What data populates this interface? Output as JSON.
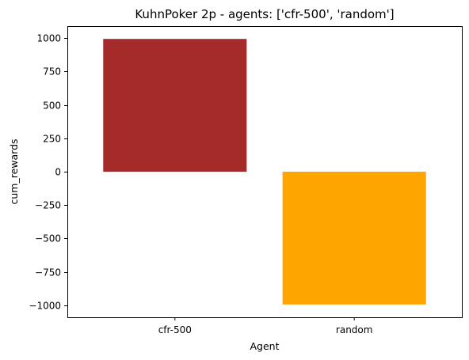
{
  "chart_data": {
    "type": "bar",
    "title": "KuhnPoker 2p - agents: ['cfr-500', 'random']",
    "xlabel": "Agent",
    "ylabel": "cum_rewards",
    "categories": [
      "cfr-500",
      "random"
    ],
    "values": [
      994,
      -994
    ],
    "colors": [
      "#a52a2a",
      "#ffa500"
    ],
    "ylim": [
      -1090,
      1090
    ],
    "yticks": [
      1000,
      750,
      500,
      250,
      0,
      -250,
      -500,
      -750,
      -1000
    ],
    "ytick_labels": [
      "1000",
      "750",
      "500",
      "250",
      "0",
      "−250",
      "−500",
      "−750",
      "−1000"
    ],
    "grid": false,
    "legend": "none"
  }
}
